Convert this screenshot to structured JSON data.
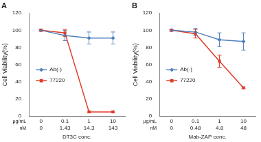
{
  "chart_data": [
    {
      "type": "line",
      "title": "A",
      "y_label": "Cell Viability(%)",
      "x_label": "DT3C conc.",
      "category_rows": [
        "μg/mL",
        "nM"
      ],
      "categories": [
        [
          "0",
          "0"
        ],
        [
          "0.1",
          "1.43"
        ],
        [
          "1",
          "14.3"
        ],
        [
          "10",
          "143"
        ]
      ],
      "series": [
        {
          "name": "Ab(-)",
          "color": "#4f81bd",
          "marker": "diamond",
          "values": [
            100,
            94,
            91,
            91
          ],
          "errors": [
            1,
            6,
            7,
            7
          ]
        },
        {
          "name": "77220",
          "color": "#e03c28",
          "marker": "square",
          "values": [
            100,
            97,
            5,
            5
          ],
          "errors": [
            1,
            4,
            1,
            1
          ]
        }
      ],
      "ylim": [
        0,
        120
      ],
      "yticks": [
        0,
        20,
        40,
        60,
        80,
        100,
        120
      ],
      "grid": false,
      "legend": "left"
    },
    {
      "type": "line",
      "title": "B",
      "y_label": "Cell Viability(%)",
      "x_label": "Mab-ZAP conc.",
      "category_rows": [
        "μg/mL",
        "nM"
      ],
      "categories": [
        [
          "0",
          "0"
        ],
        [
          "0.1",
          "0.48"
        ],
        [
          "1",
          "4.8"
        ],
        [
          "10",
          "48"
        ]
      ],
      "series": [
        {
          "name": "Ab(-)",
          "color": "#4f81bd",
          "marker": "diamond",
          "values": [
            100,
            98,
            89,
            87
          ],
          "errors": [
            1,
            4,
            8,
            10
          ]
        },
        {
          "name": "77220",
          "color": "#e03c28",
          "marker": "square",
          "values": [
            100,
            96,
            64,
            33
          ],
          "errors": [
            1,
            5,
            7,
            1
          ]
        }
      ],
      "ylim": [
        0,
        120
      ],
      "yticks": [
        0,
        20,
        40,
        60,
        80,
        100,
        120
      ],
      "grid": false,
      "legend": "left"
    }
  ]
}
